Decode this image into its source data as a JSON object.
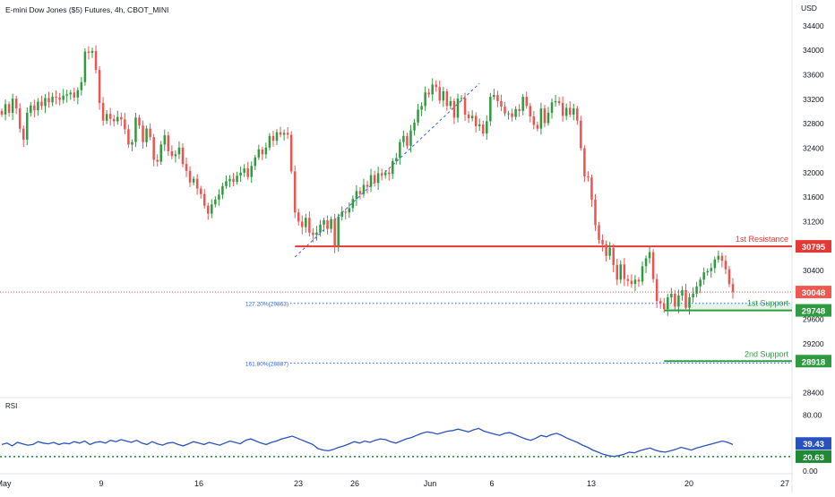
{
  "header": {
    "title": "E-mini Dow Jones ($5) Futures, 4h, CBOT_MINI"
  },
  "chart_data": {
    "type": "candlestick",
    "currency_label": "USD",
    "price_axis": {
      "ticks": [
        34400,
        34000,
        33600,
        33200,
        32800,
        32400,
        32000,
        31600,
        31200,
        30400,
        29600,
        29200,
        28400
      ],
      "range": [
        28380,
        34560
      ]
    },
    "time_axis": {
      "ticks": [
        "May",
        "9",
        "16",
        "23",
        "26",
        "Jun",
        "6",
        "13",
        "20",
        "27"
      ]
    },
    "candles_close": [
      32950,
      33120,
      32980,
      33210,
      33050,
      32720,
      32540,
      32980,
      33100,
      33020,
      33160,
      33090,
      33220,
      33150,
      33240,
      33230,
      33190,
      33260,
      33280,
      33310,
      33230,
      33350,
      33480,
      33980,
      33960,
      33990,
      33680,
      33140,
      32850,
      32960,
      32880,
      32840,
      32910,
      32870,
      32710,
      32460,
      32500,
      32900,
      32770,
      32500,
      32720,
      32580,
      32210,
      32180,
      32460,
      32610,
      32350,
      32270,
      32300,
      32410,
      32140,
      32030,
      31840,
      31900,
      31740,
      31650,
      31460,
      31330,
      31480,
      31560,
      31640,
      31780,
      31860,
      31900,
      31850,
      31950,
      32000,
      32070,
      31930,
      32110,
      32250,
      32380,
      32300,
      32410,
      32600,
      32520,
      32660,
      32620,
      32650,
      32620,
      32020,
      31350,
      31200,
      31110,
      31260,
      31020,
      30980,
      31020,
      31150,
      31220,
      31080,
      31240,
      30800,
      31280,
      31360,
      31350,
      31420,
      31570,
      31700,
      31650,
      31800,
      31770,
      31960,
      31830,
      31990,
      31960,
      32000,
      31980,
      32190,
      32240,
      32500,
      32600,
      32440,
      32690,
      32820,
      33030,
      33090,
      33310,
      33280,
      33440,
      33400,
      33180,
      33330,
      33090,
      33170,
      32900,
      33210,
      33220,
      32950,
      32890,
      32930,
      32760,
      32790,
      32640,
      32840,
      33240,
      33270,
      33170,
      33080,
      32970,
      32970,
      32910,
      33040,
      33010,
      33240,
      33090,
      32920,
      32780,
      32720,
      33050,
      32810,
      32980,
      33150,
      33170,
      33140,
      32930,
      33060,
      32950,
      33050,
      32850,
      32400,
      31940,
      31920,
      31560,
      31140,
      30900,
      30830,
      30640,
      30770,
      30490,
      30250,
      30500,
      30260,
      30230,
      30180,
      30250,
      30220,
      30470,
      30600,
      30700,
      30260,
      29900,
      29860,
      29770,
      29960,
      30020,
      29810,
      29990,
      30080,
      29790,
      29960,
      30020,
      30140,
      30250,
      30370,
      30390,
      30440,
      30580,
      30640,
      30560,
      30420,
      30180,
      30048
    ],
    "last_price": "30048",
    "levels": [
      {
        "name": "1st Resistance",
        "value": "30795"
      },
      {
        "name": "1st Support",
        "value": "29748"
      },
      {
        "name": "2nd Support",
        "value": "28918"
      }
    ],
    "fib_levels": [
      {
        "label": "127.20%(29863)",
        "value": 29863
      },
      {
        "label": "161.80%(28887)",
        "value": 28887
      }
    ],
    "trendline": {
      "from": 30620,
      "to": 33460
    },
    "colors": {
      "up": "#26a69a",
      "up_body": "#2e9c3e",
      "down": "#ef5350",
      "resistance": "#e53935",
      "support": "#2e9c3e",
      "fib": "#2962ff",
      "rsi": "#2a52be",
      "rsi_low": "#1e8a34",
      "last_price": "#f05750"
    }
  },
  "rsi": {
    "label": "RSI",
    "ticks": [
      "80.00",
      "0.00"
    ],
    "current": "39.43",
    "lower_band": "20.63",
    "values": [
      38,
      40,
      36,
      41,
      39,
      37,
      38,
      42,
      40,
      39,
      41,
      38,
      40,
      39,
      42,
      40,
      43,
      38,
      41,
      42,
      40,
      44,
      42,
      45,
      43,
      41,
      44,
      40,
      38,
      42,
      39,
      37,
      40,
      41,
      38,
      36,
      39,
      42,
      40,
      38,
      41,
      39,
      37,
      40,
      43,
      41,
      39,
      44,
      46,
      43,
      40,
      38,
      41,
      43,
      46,
      48,
      50,
      47,
      44,
      41,
      38,
      32,
      30,
      29,
      31,
      34,
      36,
      39,
      42,
      40,
      43,
      41,
      44,
      46,
      45,
      42,
      40,
      43,
      46,
      48,
      51,
      54,
      56,
      55,
      53,
      55,
      57,
      58,
      60,
      58,
      56,
      59,
      61,
      57,
      55,
      53,
      51,
      54,
      55,
      52,
      49,
      46,
      44,
      47,
      51,
      49,
      52,
      54,
      51,
      47,
      44,
      41,
      37,
      34,
      30,
      27,
      24,
      22,
      21,
      22,
      24,
      27,
      26,
      29,
      31,
      33,
      30,
      28,
      27,
      29,
      31,
      34,
      32,
      30,
      33,
      35,
      37,
      39,
      41,
      43,
      41,
      38
    ]
  }
}
